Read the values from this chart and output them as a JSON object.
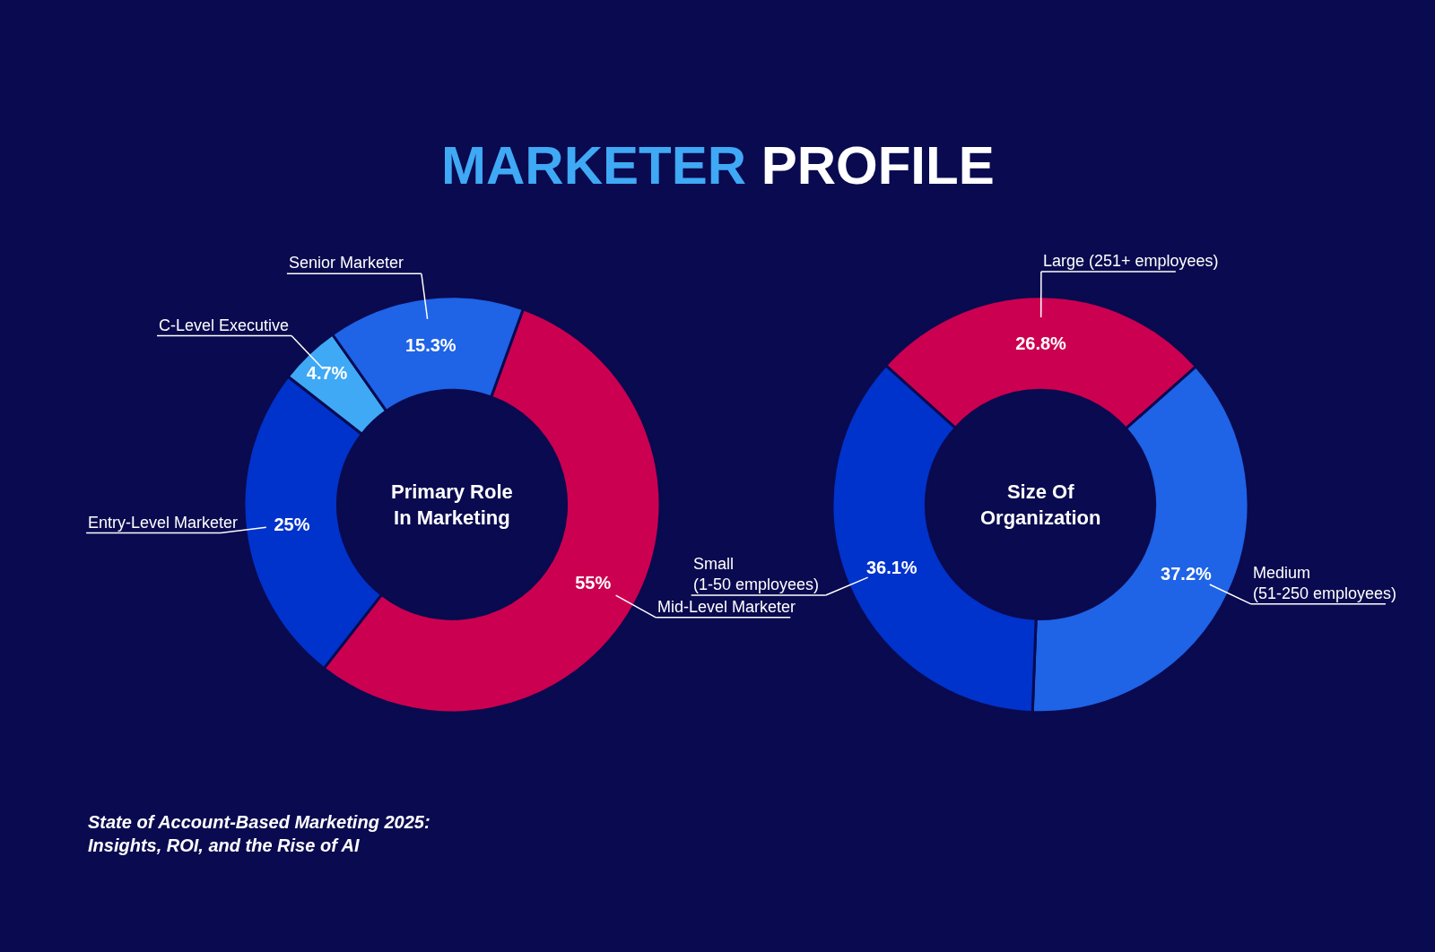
{
  "chart_data": [
    {
      "type": "donut",
      "title": "Primary Role\nIn Marketing",
      "categories": [
        "Mid-Level Marketer",
        "Entry-Level Marketer",
        "C-Level Executive",
        "Senior Marketer"
      ],
      "values": [
        55,
        25,
        4.7,
        15.3
      ],
      "value_labels": [
        "55%",
        "25%",
        "4.7%",
        "15.3%"
      ],
      "colors": [
        "#cc0050",
        "#0033cc",
        "#3fa9f5",
        "#1f63e6"
      ],
      "annotations": [
        "MARKETER PROFILE",
        "State of Account-Based Marketing 2025:\nInsights, ROI, and the Rise of AI"
      ]
    },
    {
      "type": "donut",
      "title": "Size Of\nOrganization",
      "categories": [
        "Large (251+ employees)",
        "Medium\n(51-250 employees)",
        "Small\n(1-50 employees)"
      ],
      "values": [
        26.8,
        37.2,
        36.1
      ],
      "value_labels": [
        "26.8%",
        "37.2%",
        "36.1%"
      ],
      "colors": [
        "#cc0050",
        "#1f63e6",
        "#0033cc"
      ]
    }
  ]
}
